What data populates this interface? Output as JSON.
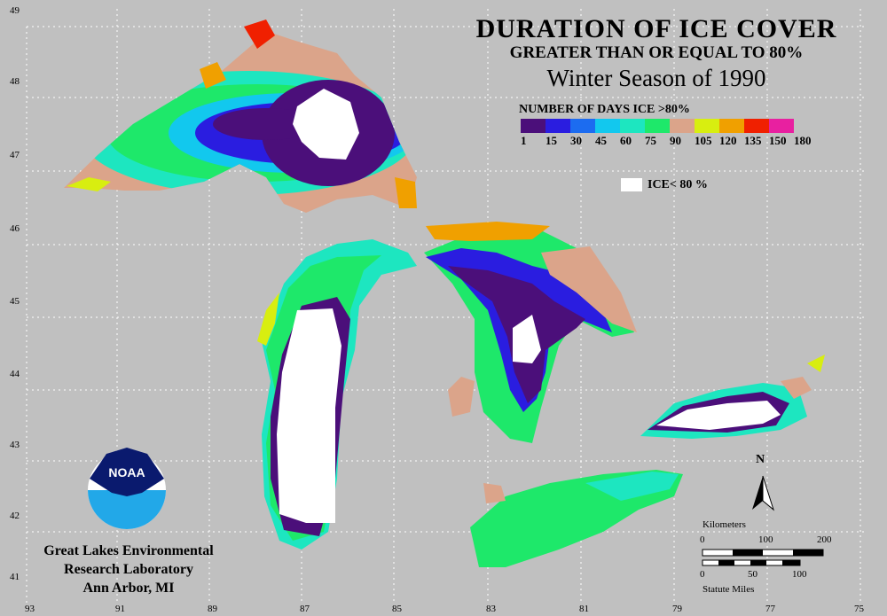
{
  "title": {
    "line1": "DURATION OF ICE COVER",
    "line2": "GREATER THAN OR EQUAL TO 80%",
    "line3": "Winter Season of 1990"
  },
  "legend": {
    "title": "NUMBER OF DAYS ICE >80%",
    "colors": [
      "#4b0f7a",
      "#2a1de0",
      "#1c6cf0",
      "#12c8ee",
      "#1de6c0",
      "#1ee86a",
      "#dba48a",
      "#d8ee10",
      "#f0a000",
      "#f02000",
      "#e820a0"
    ],
    "ticks": [
      "1",
      "15",
      "30",
      "45",
      "60",
      "75",
      "90",
      "105",
      "120",
      "135",
      "150",
      "180"
    ],
    "ice_label": "ICE< 80 %"
  },
  "axes": {
    "lon_labels": [
      "93",
      "91",
      "89",
      "87",
      "85",
      "83",
      "81",
      "79",
      "77",
      "75"
    ],
    "lat_labels": [
      "49",
      "48",
      "47",
      "46",
      "45",
      "44",
      "43",
      "42",
      "41"
    ]
  },
  "credit": {
    "line1": "Great Lakes Environmental",
    "line2": "Research Laboratory",
    "line3": "Ann Arbor, MI",
    "logo_text": "NOAA"
  },
  "scale": {
    "km_label": "Kilometers",
    "km_ticks": [
      "0",
      "100",
      "200"
    ],
    "mi_label": "Statute Miles",
    "mi_ticks": [
      "0",
      "50",
      "100"
    ]
  },
  "north": "N"
}
